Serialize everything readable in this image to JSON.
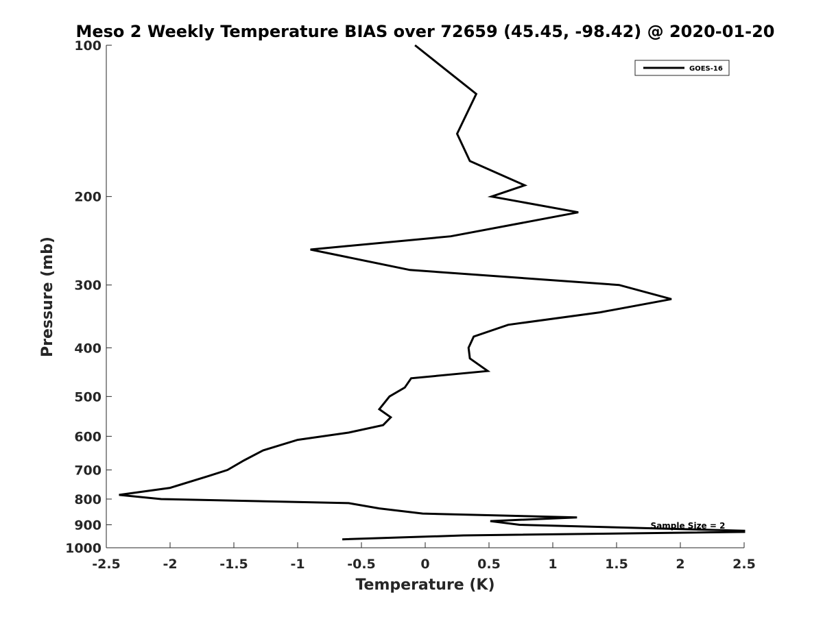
{
  "chart_data": {
    "type": "line",
    "title": "Meso 2 Weekly Temperature BIAS over 72659 (45.45, -98.42) @ 2020-01-20",
    "xlabel": "Temperature (K)",
    "ylabel": "Pressure (mb)",
    "xlim": [
      -2.5,
      2.5
    ],
    "ylim": [
      100,
      1000
    ],
    "yscale": "log",
    "yreversed": true,
    "xticks": [
      -2.5,
      -2,
      -1.5,
      -1,
      -0.5,
      0,
      0.5,
      1,
      1.5,
      2,
      2.5
    ],
    "xtick_labels": [
      "-2.5",
      "-2",
      "-1.5",
      "-1",
      "-0.5",
      "0",
      "0.5",
      "1",
      "1.5",
      "2",
      "2.5"
    ],
    "yticks": [
      100,
      200,
      300,
      400,
      500,
      600,
      700,
      800,
      900,
      1000
    ],
    "ytick_labels": [
      "100",
      "200",
      "300",
      "400",
      "500",
      "600",
      "700",
      "800",
      "900",
      "1000"
    ],
    "grid": false,
    "legend_position": "top-right",
    "annotation": "Sample Size = 2",
    "series": [
      {
        "name": "GOES-16",
        "color": "#000000",
        "points": [
          {
            "x": -0.08,
            "p": 100
          },
          {
            "x": 0.4,
            "p": 125
          },
          {
            "x": 0.25,
            "p": 150
          },
          {
            "x": 0.35,
            "p": 170
          },
          {
            "x": 0.78,
            "p": 190
          },
          {
            "x": 0.52,
            "p": 200
          },
          {
            "x": 1.2,
            "p": 215
          },
          {
            "x": 0.2,
            "p": 240
          },
          {
            "x": -0.9,
            "p": 255
          },
          {
            "x": -0.12,
            "p": 280
          },
          {
            "x": 1.52,
            "p": 300
          },
          {
            "x": 1.93,
            "p": 320
          },
          {
            "x": 1.37,
            "p": 340
          },
          {
            "x": 0.65,
            "p": 360
          },
          {
            "x": 0.38,
            "p": 380
          },
          {
            "x": 0.34,
            "p": 400
          },
          {
            "x": 0.35,
            "p": 420
          },
          {
            "x": 0.49,
            "p": 445
          },
          {
            "x": -0.11,
            "p": 460
          },
          {
            "x": -0.16,
            "p": 480
          },
          {
            "x": -0.28,
            "p": 500
          },
          {
            "x": -0.36,
            "p": 530
          },
          {
            "x": -0.27,
            "p": 550
          },
          {
            "x": -0.33,
            "p": 570
          },
          {
            "x": -0.6,
            "p": 590
          },
          {
            "x": -1.0,
            "p": 610
          },
          {
            "x": -1.27,
            "p": 640
          },
          {
            "x": -1.42,
            "p": 670
          },
          {
            "x": -1.55,
            "p": 700
          },
          {
            "x": -1.7,
            "p": 720
          },
          {
            "x": -2.0,
            "p": 760
          },
          {
            "x": -2.4,
            "p": 785
          },
          {
            "x": -2.07,
            "p": 800
          },
          {
            "x": -0.6,
            "p": 815
          },
          {
            "x": -0.36,
            "p": 835
          },
          {
            "x": -0.02,
            "p": 855
          },
          {
            "x": 1.19,
            "p": 870
          },
          {
            "x": 0.51,
            "p": 885
          },
          {
            "x": 0.74,
            "p": 900
          },
          {
            "x": 2.5,
            "p": 925
          },
          {
            "x": 2.5,
            "p": 930
          },
          {
            "x": 0.3,
            "p": 945
          },
          {
            "x": -0.65,
            "p": 962
          }
        ]
      }
    ]
  }
}
